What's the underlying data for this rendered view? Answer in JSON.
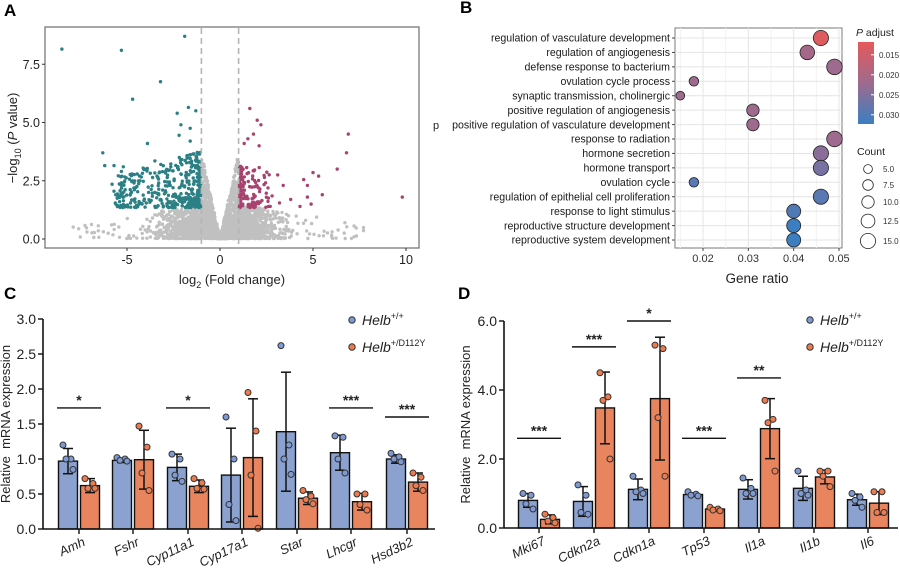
{
  "figure": {
    "panel_labels": [
      "A",
      "B",
      "C",
      "D"
    ],
    "stray_text": "p"
  },
  "chart_data": [
    {
      "panel": "A",
      "type": "scatter",
      "xlabel": {
        "pre": "log",
        "sub": "2",
        "post": " (Fold change)"
      },
      "ylabel": {
        "pre": "−log",
        "sub": "10",
        "mid": " (",
        "ital": "P",
        "post": " value)"
      },
      "xlim": [
        -9.3,
        10.7
      ],
      "ylim": [
        -0.4,
        9.1
      ],
      "x_ticks": [
        "-5",
        "0",
        "5",
        "10"
      ],
      "x_tick_values": [
        -5,
        0,
        5,
        10
      ],
      "y_ticks": [
        "0.0",
        "2.5",
        "5.0",
        "7.5"
      ],
      "y_tick_values": [
        0,
        2.5,
        5,
        7.5
      ],
      "threshold_lines_x": [
        -1,
        1
      ],
      "colors": {
        "down": "#2b8085",
        "up": "#a8436f",
        "ns": "#c0c0c0",
        "threshold": "#b5b5b5"
      },
      "down_points": [
        [
          -8.5,
          8.15
        ],
        [
          -5.3,
          8.1
        ],
        [
          -1.9,
          8.7
        ],
        [
          -3.2,
          6.75
        ],
        [
          -4.7,
          6.0
        ],
        [
          -1.7,
          5.65
        ],
        [
          -1.3,
          5.5
        ],
        [
          -2.3,
          5.4
        ],
        [
          -2.1,
          4.9
        ],
        [
          -1.6,
          4.75
        ],
        [
          -2.2,
          4.45
        ],
        [
          -1.6,
          4.2
        ],
        [
          -3.9,
          4.1
        ],
        [
          -6.3,
          3.7
        ],
        [
          -6.2,
          3.15
        ],
        [
          -5.7,
          3.15
        ],
        [
          -5.2,
          3.1
        ],
        [
          -5.3,
          2.9
        ],
        [
          -3.5,
          3.35
        ],
        [
          -5.8,
          2.35
        ],
        [
          -5.6,
          1.5
        ],
        [
          -4.7,
          2.5
        ],
        [
          -4.3,
          2.5
        ],
        [
          -5.7,
          2.05
        ]
      ],
      "up_points": [
        [
          1.6,
          5.6
        ],
        [
          2.0,
          5.1
        ],
        [
          2.2,
          4.9
        ],
        [
          1.8,
          4.5
        ],
        [
          1.5,
          4.3
        ],
        [
          2.1,
          4.0
        ],
        [
          1.3,
          4.1
        ],
        [
          6.9,
          4.5
        ],
        [
          6.8,
          3.7
        ],
        [
          6.3,
          3.0
        ],
        [
          5.0,
          2.85
        ],
        [
          5.3,
          2.7
        ],
        [
          3.1,
          2.75
        ],
        [
          4.5,
          2.55
        ],
        [
          4.7,
          2.3
        ],
        [
          3.4,
          2.3
        ],
        [
          5.5,
          1.9
        ],
        [
          9.8,
          1.8
        ],
        [
          4.7,
          1.8
        ],
        [
          3.8,
          1.7
        ],
        [
          3.2,
          1.55
        ],
        [
          4.9,
          1.5
        ],
        [
          2.8,
          1.85
        ],
        [
          2.7,
          1.4
        ],
        [
          4.3,
          1.4
        ]
      ]
    },
    {
      "panel": "B",
      "type": "scatter",
      "xlabel": "Gene ratio",
      "xlim": [
        0.0138,
        0.0506
      ],
      "x_ticks": [
        "0.02",
        "0.03",
        "0.04",
        "0.05"
      ],
      "x_tick_values": [
        0.02,
        0.03,
        0.04,
        0.05
      ],
      "grid": true,
      "terms": [
        {
          "term": "regulation of vasculature development",
          "gene_ratio": 0.046,
          "p_adjust": 0.013,
          "count": 15
        },
        {
          "term": "regulation of angiogenesis",
          "gene_ratio": 0.043,
          "p_adjust": 0.021,
          "count": 14
        },
        {
          "term": "defense response to bacterium",
          "gene_ratio": 0.049,
          "p_adjust": 0.022,
          "count": 16
        },
        {
          "term": "ovulation cycle process",
          "gene_ratio": 0.018,
          "p_adjust": 0.022,
          "count": 6
        },
        {
          "term": "synaptic transmission, cholinergic",
          "gene_ratio": 0.015,
          "p_adjust": 0.022,
          "count": 5
        },
        {
          "term": "positive regulation of angiogenesis",
          "gene_ratio": 0.031,
          "p_adjust": 0.022,
          "count": 10
        },
        {
          "term": "positive regulation of vasculature development",
          "gene_ratio": 0.031,
          "p_adjust": 0.022,
          "count": 10
        },
        {
          "term": "response to radiation",
          "gene_ratio": 0.049,
          "p_adjust": 0.022,
          "count": 16
        },
        {
          "term": "hormone secretion",
          "gene_ratio": 0.046,
          "p_adjust": 0.024,
          "count": 15
        },
        {
          "term": "hormone transport",
          "gene_ratio": 0.046,
          "p_adjust": 0.026,
          "count": 15
        },
        {
          "term": "ovulation cycle",
          "gene_ratio": 0.018,
          "p_adjust": 0.029,
          "count": 6
        },
        {
          "term": "regulation of epithelial cell proliferation",
          "gene_ratio": 0.046,
          "p_adjust": 0.029,
          "count": 15
        },
        {
          "term": "response to light stimulus",
          "gene_ratio": 0.04,
          "p_adjust": 0.03,
          "count": 13
        },
        {
          "term": "reproductive structure development",
          "gene_ratio": 0.04,
          "p_adjust": 0.032,
          "count": 13
        },
        {
          "term": "reproductive system development",
          "gene_ratio": 0.04,
          "p_adjust": 0.032,
          "count": 13
        }
      ],
      "color_legend": {
        "title_ital": "P",
        "title_rest": " adjust",
        "ticks": [
          "0.015",
          "0.020",
          "0.025",
          "0.030"
        ],
        "tick_values": [
          0.015,
          0.02,
          0.025,
          0.03
        ],
        "range": [
          0.0118,
          0.0323
        ],
        "low_color": "#e45a5a",
        "high_color": "#3a7fc1"
      },
      "size_legend": {
        "title": "Count",
        "labels": [
          "5.0",
          "7.5",
          "10.0",
          "12.5",
          "15.0"
        ],
        "values": [
          5,
          7.5,
          10,
          12.5,
          15
        ]
      }
    },
    {
      "panel": "C",
      "type": "bar",
      "ylabel": "Relative  mRNA expression",
      "ylim": [
        0,
        3.0
      ],
      "y_ticks": [
        "0.0",
        "0.5",
        "1.0",
        "1.5",
        "2.0",
        "2.5",
        "3.0"
      ],
      "y_tick_values": [
        0,
        0.5,
        1,
        1.5,
        2,
        2.5,
        3
      ],
      "categories": [
        "Amh",
        "Fshr",
        "Cyp11a1",
        "Cyp17a1",
        "Star",
        "Lhcgr",
        "Hsd3b2"
      ],
      "series": [
        {
          "name": "Helb",
          "sup": "+/+",
          "bar_color": "#8ba2d0",
          "point_color": "#7d9ad4",
          "values": [
            0.97,
            0.98,
            0.88,
            0.77,
            1.39,
            1.09,
            1.0
          ],
          "sd": [
            0.18,
            0.03,
            0.19,
            0.67,
            0.85,
            0.25,
            0.06
          ],
          "points": [
            [
              1.2,
              1.0,
              1.0,
              0.85
            ],
            [
              1.02,
              1.0,
              0.98,
              0.97
            ],
            [
              1.07,
              1.0,
              0.77,
              0.68
            ],
            [
              1.6,
              1.0,
              0.35,
              0.12
            ],
            [
              2.62,
              1.2,
              1.0,
              0.78
            ],
            [
              1.33,
              1.31,
              1.0,
              0.8
            ],
            [
              1.08,
              1.03,
              1.0,
              0.96
            ]
          ]
        },
        {
          "name": "Helb",
          "sup": "+/D112Y",
          "bar_color": "#e8855f",
          "point_color": "#ee7b4e",
          "values": [
            0.62,
            0.99,
            0.61,
            1.02,
            0.44,
            0.39,
            0.67
          ],
          "sd": [
            0.1,
            0.42,
            0.09,
            0.84,
            0.09,
            0.12,
            0.13
          ],
          "points": [
            [
              0.72,
              0.65,
              0.58,
              0.58
            ],
            [
              1.47,
              1.17,
              0.8,
              0.55
            ],
            [
              0.72,
              0.66,
              0.58,
              0.57
            ],
            [
              1.95,
              1.4,
              0.77,
              0.01
            ],
            [
              0.55,
              0.47,
              0.42,
              0.36
            ],
            [
              0.5,
              0.5,
              0.35,
              0.27
            ],
            [
              0.8,
              0.74,
              0.62,
              0.55
            ]
          ]
        }
      ],
      "significance": [
        {
          "category": "Amh",
          "label": "*",
          "y": 1.73
        },
        {
          "category": "Cyp11a1",
          "label": "*",
          "y": 1.73
        },
        {
          "category": "Lhcgr",
          "label": "***",
          "y": 1.73
        },
        {
          "category": "Hsd3b2",
          "label": "***",
          "y": 1.6
        }
      ]
    },
    {
      "panel": "D",
      "type": "bar",
      "ylabel": "Relative  mRNA expression",
      "ylim": [
        0,
        6.0
      ],
      "y_ticks": [
        "0.0",
        "2.0",
        "4.0",
        "6.0"
      ],
      "y_tick_values": [
        0,
        2,
        4,
        6
      ],
      "categories": [
        "Mki67",
        "Cdkn2a",
        "Cdkn1a",
        "Tp53",
        "Il1a",
        "Il1b",
        "Il6"
      ],
      "series": [
        {
          "name": "Helb",
          "sup": "+/+",
          "bar_color": "#8ba2d0",
          "point_color": "#7d9ad4",
          "values": [
            0.8,
            0.77,
            1.12,
            0.97,
            1.12,
            1.15,
            0.82
          ],
          "sd": [
            0.2,
            0.43,
            0.3,
            0.05,
            0.28,
            0.35,
            0.16
          ],
          "points": [
            [
              1.0,
              0.95,
              0.7,
              0.55
            ],
            [
              1.25,
              0.95,
              0.45,
              0.4
            ],
            [
              1.5,
              1.1,
              1.05,
              1.0
            ],
            [
              1.05,
              0.98,
              0.95,
              0.93
            ],
            [
              1.45,
              1.15,
              1.0,
              1.0
            ],
            [
              1.65,
              1.1,
              1.0,
              0.95
            ],
            [
              1.0,
              0.9,
              0.8,
              0.6
            ]
          ]
        },
        {
          "name": "Helb",
          "sup": "+/D112Y",
          "bar_color": "#e8855f",
          "point_color": "#ee7b4e",
          "values": [
            0.25,
            3.48,
            3.75,
            0.55,
            2.88,
            1.48,
            0.72
          ],
          "sd": [
            0.13,
            1.04,
            1.78,
            0.04,
            0.87,
            0.2,
            0.33
          ],
          "points": [
            [
              0.4,
              0.3,
              0.2,
              0.15
            ],
            [
              4.5,
              3.8,
              3.7,
              2.0
            ],
            [
              5.3,
              5.2,
              3.2,
              1.5
            ],
            [
              0.6,
              0.55,
              0.52,
              0.5
            ],
            [
              3.7,
              3.15,
              3.05,
              1.65
            ],
            [
              1.65,
              1.65,
              1.5,
              1.2
            ],
            [
              1.05,
              1.05,
              0.45,
              0.45
            ]
          ]
        }
      ],
      "significance": [
        {
          "category": "Mki67",
          "label": "***",
          "y": 2.6
        },
        {
          "category": "Cdkn2a",
          "label": "***",
          "y": 5.25
        },
        {
          "category": "Cdkn1a",
          "label": "*",
          "y": 6.0
        },
        {
          "category": "Tp53",
          "label": "***",
          "y": 2.6
        },
        {
          "category": "Il1a",
          "label": "**",
          "y": 4.35
        }
      ]
    }
  ]
}
